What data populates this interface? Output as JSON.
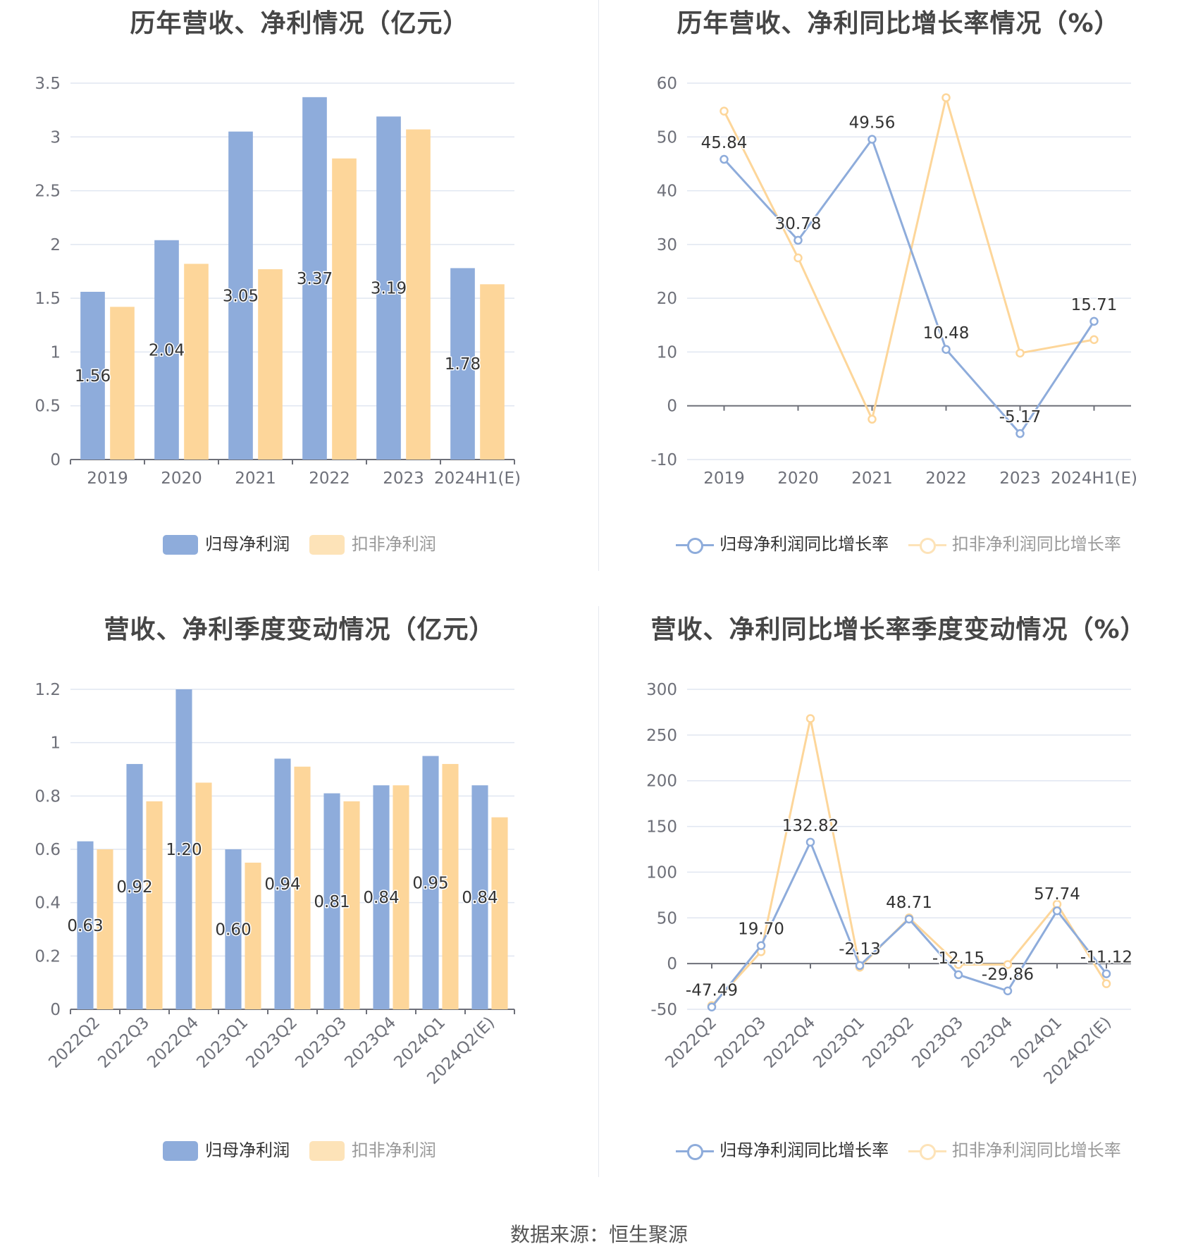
{
  "colors": {
    "primary": "#8eacdb",
    "secondary": "#fdd69a",
    "grid": "#e0e6f1",
    "axis": "#6e7079"
  },
  "source": "数据来源：恒生聚源",
  "chart_data": [
    {
      "id": "annual-profit",
      "type": "bar",
      "title": "历年营收、净利情况（亿元）",
      "categories": [
        "2019",
        "2020",
        "2021",
        "2022",
        "2023",
        "2024H1(E)"
      ],
      "series": [
        {
          "name": "归母净利润",
          "values": [
            1.56,
            2.04,
            3.05,
            3.37,
            3.19,
            1.78
          ],
          "labels": [
            "1.56",
            "2.04",
            "3.05",
            "3.37",
            "3.19",
            "1.78"
          ]
        },
        {
          "name": "扣非净利润",
          "values": [
            1.42,
            1.82,
            1.77,
            2.8,
            3.07,
            1.63
          ]
        }
      ],
      "ylim": [
        0,
        3.5
      ],
      "yticks": [
        "0",
        "0.5",
        "1",
        "1.5",
        "2",
        "2.5",
        "3",
        "3.5"
      ],
      "grid": true,
      "legend": "bottom"
    },
    {
      "id": "annual-growth",
      "type": "line",
      "title": "历年营收、净利同比增长率情况（%）",
      "categories": [
        "2019",
        "2020",
        "2021",
        "2022",
        "2023",
        "2024H1(E)"
      ],
      "series": [
        {
          "name": "归母净利润同比增长率",
          "values": [
            45.84,
            30.78,
            49.56,
            10.48,
            -5.17,
            15.71
          ],
          "labels": [
            "45.84",
            "30.78",
            "49.56",
            "10.48",
            "-5.17",
            "15.71"
          ]
        },
        {
          "name": "扣非净利润同比增长率",
          "values": [
            54.8,
            27.5,
            -2.5,
            57.3,
            9.8,
            12.3
          ]
        }
      ],
      "ylim": [
        -10,
        60
      ],
      "yticks": [
        "-10",
        "0",
        "10",
        "20",
        "30",
        "40",
        "50",
        "60"
      ],
      "grid": true,
      "legend": "bottom"
    },
    {
      "id": "quarterly-profit",
      "type": "bar",
      "title": "营收、净利季度变动情况（亿元）",
      "categories": [
        "2022Q2",
        "2022Q3",
        "2022Q4",
        "2023Q1",
        "2023Q2",
        "2023Q3",
        "2023Q4",
        "2024Q1",
        "2024Q2(E)"
      ],
      "series": [
        {
          "name": "归母净利润",
          "values": [
            0.63,
            0.92,
            1.2,
            0.6,
            0.94,
            0.81,
            0.84,
            0.95,
            0.84
          ],
          "labels": [
            "0.63",
            "0.92",
            "1.20",
            "0.60",
            "0.94",
            "0.81",
            "0.84",
            "0.95",
            "0.84"
          ]
        },
        {
          "name": "扣非净利润",
          "values": [
            0.6,
            0.78,
            0.85,
            0.55,
            0.91,
            0.78,
            0.84,
            0.92,
            0.72
          ]
        }
      ],
      "ylim": [
        0,
        1.2
      ],
      "yticks": [
        "0",
        "0.2",
        "0.4",
        "0.6",
        "0.8",
        "1",
        "1.2"
      ],
      "grid": true,
      "legend": "bottom"
    },
    {
      "id": "quarterly-growth",
      "type": "line",
      "title": "营收、净利同比增长率季度变动情况（%）",
      "categories": [
        "2022Q2",
        "2022Q3",
        "2022Q4",
        "2023Q1",
        "2023Q2",
        "2023Q3",
        "2023Q4",
        "2024Q1",
        "2024Q2(E)"
      ],
      "series": [
        {
          "name": "归母净利润同比增长率",
          "values": [
            -47.49,
            19.7,
            132.82,
            -2.13,
            48.71,
            -12.15,
            -29.86,
            57.74,
            -11.12
          ],
          "labels": [
            "-47.49",
            "19.70",
            "132.82",
            "-2.13",
            "48.71",
            "-12.15",
            "-29.86",
            "57.74",
            "-11.12"
          ]
        },
        {
          "name": "扣非净利润同比增长率",
          "values": [
            -46,
            13,
            268,
            -4,
            50,
            -1,
            -1,
            65,
            -22
          ]
        }
      ],
      "ylim": [
        -50,
        300
      ],
      "yticks": [
        "-50",
        "0",
        "50",
        "100",
        "150",
        "200",
        "250",
        "300"
      ],
      "grid": true,
      "legend": "bottom"
    }
  ]
}
